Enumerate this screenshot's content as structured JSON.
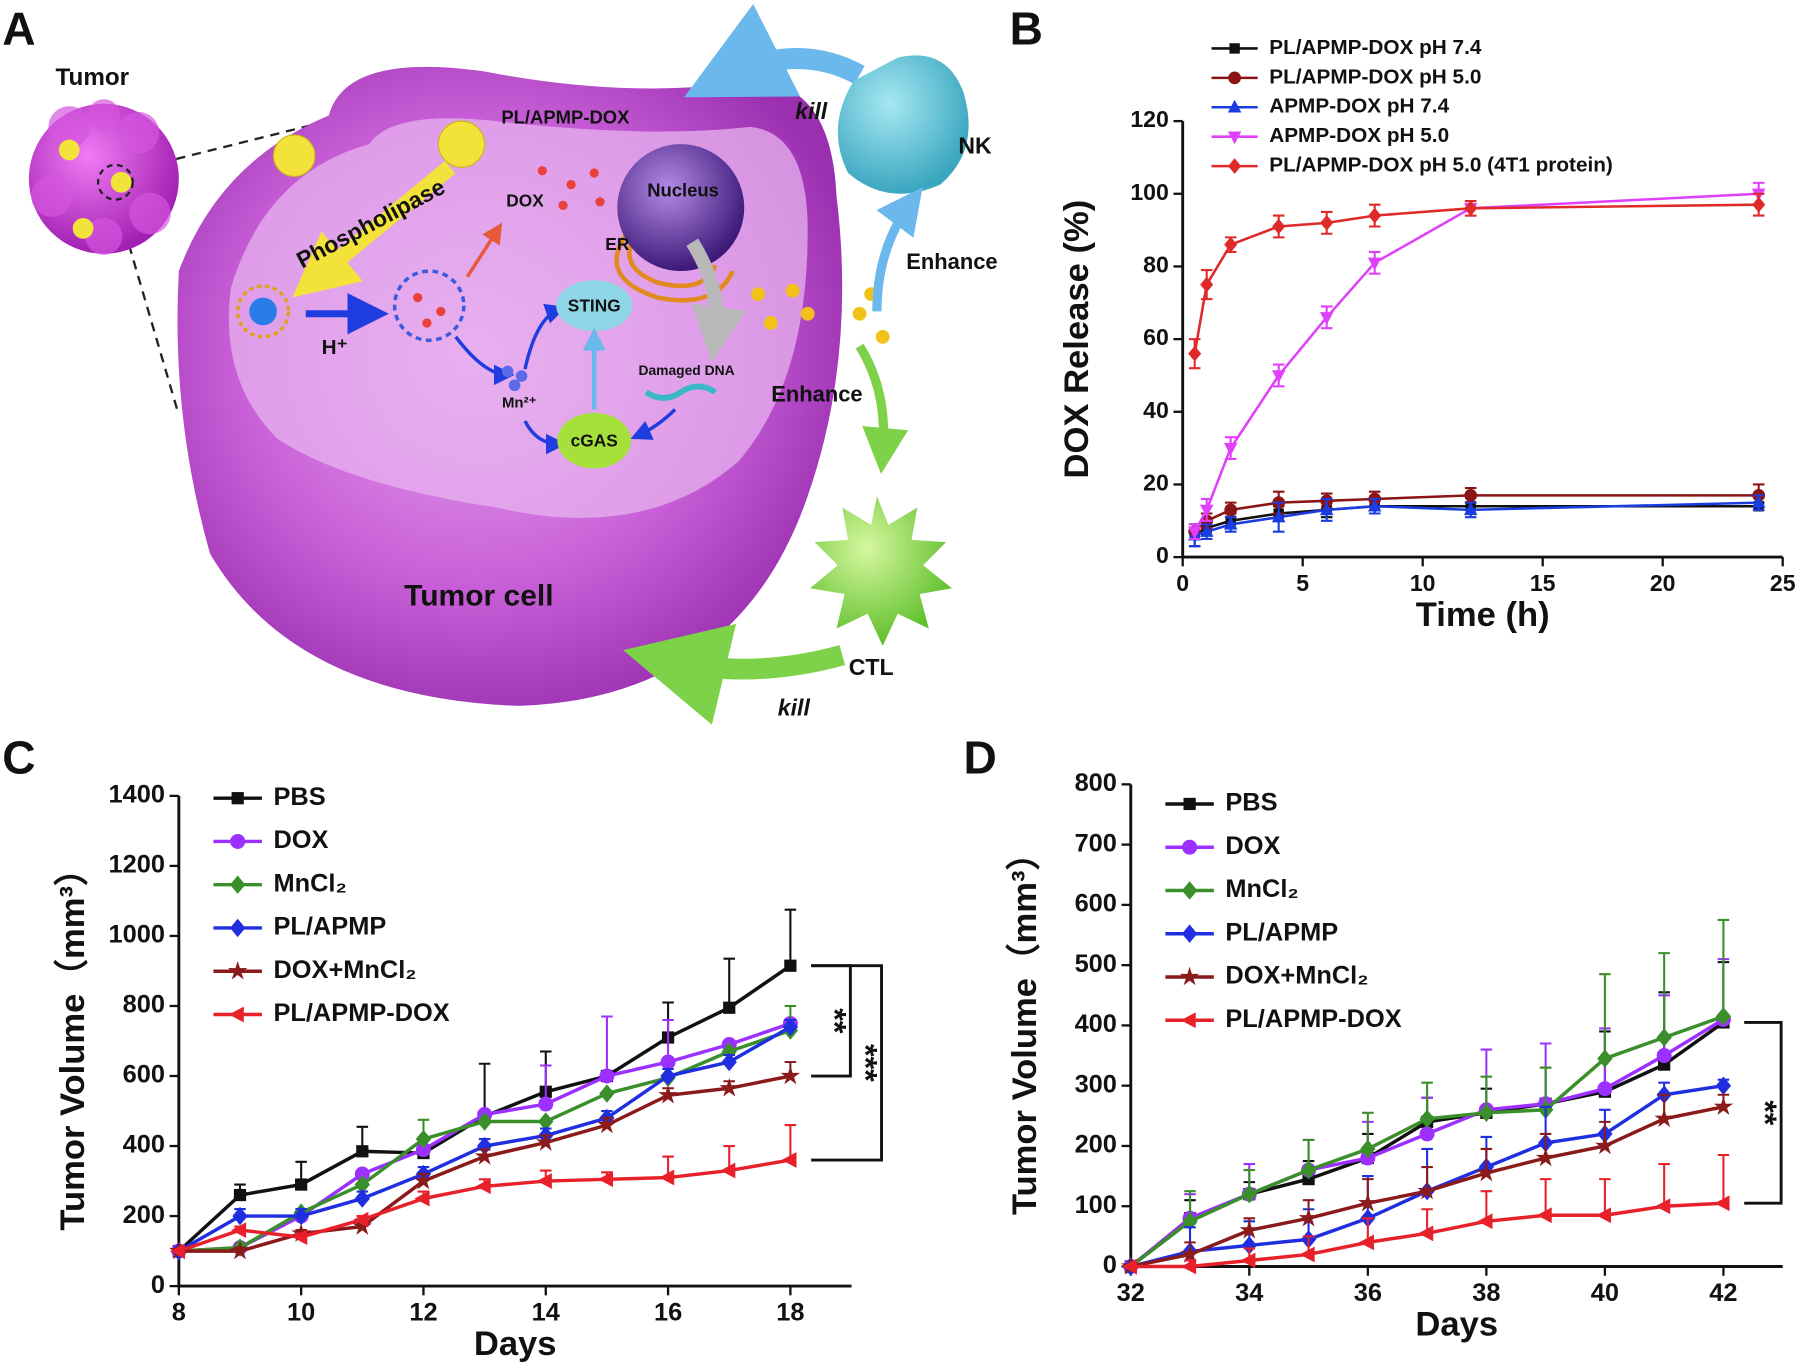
{
  "panels": [
    "A",
    "B",
    "C",
    "D"
  ],
  "diagram": {
    "tumor": "Tumor",
    "nanoparticle": "PL/APMP-DOX",
    "enzyme": "Phospholipase",
    "proton": "H⁺",
    "dox": "DOX",
    "nucleus": "Nucleus",
    "er": "ER",
    "sting": "STING",
    "mn": "Mn²⁺",
    "dna": "Damaged DNA",
    "cgas": "cGAS",
    "nk": "NK",
    "nk_kill": "kill",
    "nk_enhance": "Enhance",
    "ctl_enhance": "Enhance",
    "ctl": "CTL",
    "ctl_kill": "kill",
    "cell": "Tumor cell"
  },
  "chart_data": [
    {
      "type": "line",
      "xlabel": "Time (h)",
      "ylabel": "DOX Release (%)",
      "error_bars": "both",
      "x": [
        0.5,
        1,
        2,
        4,
        6,
        8,
        12,
        24
      ],
      "xlim": [
        0,
        25
      ],
      "xticks": [
        0,
        5,
        10,
        15,
        20,
        25
      ],
      "ylim": [
        0,
        120
      ],
      "yticks": [
        0,
        20,
        40,
        60,
        80,
        100,
        120
      ],
      "series": [
        {
          "name": "PL/APMP-DOX pH 7.4",
          "color": "#111111",
          "marker": "square",
          "values": [
            6,
            8,
            10,
            12,
            13,
            14,
            14,
            14
          ],
          "errors": [
            3,
            2,
            2,
            2,
            2,
            2,
            1,
            1
          ]
        },
        {
          "name": "PL/APMP-DOX pH 5.0",
          "color": "#8b1414",
          "marker": "circle",
          "values": [
            7,
            10,
            13,
            15,
            15.5,
            16,
            17,
            17
          ],
          "errors": [
            2,
            2,
            2,
            3,
            2,
            2,
            2,
            3
          ]
        },
        {
          "name": "APMP-DOX pH 7.4",
          "color": "#1a3ce0",
          "marker": "triangle",
          "values": [
            6,
            7,
            9,
            11,
            13,
            14,
            13,
            15
          ],
          "errors": [
            3,
            2,
            2,
            4,
            3,
            2,
            2,
            2
          ]
        },
        {
          "name": "APMP-DOX pH 5.0",
          "color": "#e040fb",
          "marker": "triangle-down",
          "values": [
            7,
            13,
            30,
            50,
            66,
            81,
            96,
            100
          ],
          "errors": [
            2,
            3,
            3,
            3,
            3,
            3,
            2,
            3
          ]
        },
        {
          "name": "PL/APMP-DOX pH 5.0 (4T1 protein)",
          "color": "#e02a2a",
          "marker": "diamond",
          "values": [
            56,
            75,
            86,
            91,
            92,
            94,
            96,
            97
          ],
          "errors": [
            4,
            4,
            2,
            3,
            3,
            3,
            2,
            3
          ]
        }
      ]
    },
    {
      "type": "line",
      "xlabel": "Days",
      "ylabel": "Tumor Volume（mm³）",
      "error_bars": "up",
      "x": [
        8,
        9,
        10,
        11,
        12,
        13,
        14,
        15,
        16,
        17,
        18
      ],
      "xlim": [
        8,
        19
      ],
      "xticks": [
        8,
        10,
        12,
        14,
        16,
        18
      ],
      "ylim": [
        0,
        1400
      ],
      "yticks": [
        0,
        200,
        400,
        600,
        800,
        1000,
        1200,
        1400
      ],
      "annotations": [
        "**",
        "***"
      ],
      "series": [
        {
          "name": "PBS",
          "color": "#111111",
          "marker": "square",
          "values": [
            100,
            260,
            290,
            385,
            380,
            485,
            555,
            600,
            710,
            795,
            915
          ],
          "errors": [
            0,
            30,
            65,
            70,
            0,
            150,
            115,
            0,
            100,
            140,
            160
          ]
        },
        {
          "name": "DOX",
          "color": "#9b30ff",
          "marker": "circle",
          "values": [
            100,
            110,
            200,
            320,
            390,
            490,
            520,
            600,
            640,
            690,
            750
          ],
          "errors": [
            0,
            0,
            0,
            0,
            0,
            0,
            110,
            170,
            120,
            0,
            0
          ]
        },
        {
          "name": "MnCl₂",
          "color": "#3a8f2a",
          "marker": "diamond",
          "values": [
            100,
            110,
            210,
            290,
            420,
            470,
            470,
            550,
            595,
            670,
            730
          ],
          "errors": [
            0,
            0,
            0,
            0,
            55,
            0,
            0,
            0,
            0,
            0,
            70
          ]
        },
        {
          "name": "PL/APMP",
          "color": "#1f2fe0",
          "marker": "diamond",
          "values": [
            100,
            200,
            200,
            250,
            320,
            400,
            430,
            480,
            600,
            640,
            740
          ],
          "errors": [
            0,
            20,
            20,
            20,
            20,
            20,
            20,
            20,
            20,
            20,
            20
          ]
        },
        {
          "name": "DOX+MnCl₂",
          "color": "#8b1a1a",
          "marker": "star",
          "values": [
            100,
            100,
            150,
            170,
            300,
            370,
            410,
            460,
            545,
            565,
            600
          ],
          "errors": [
            0,
            10,
            10,
            10,
            20,
            20,
            20,
            20,
            20,
            20,
            40
          ]
        },
        {
          "name": "PL/APMP-DOX",
          "color": "#e8202a",
          "marker": "triangle-left",
          "values": [
            100,
            160,
            140,
            190,
            250,
            285,
            300,
            305,
            310,
            330,
            360
          ],
          "errors": [
            0,
            10,
            10,
            10,
            20,
            20,
            30,
            20,
            60,
            70,
            100
          ]
        }
      ]
    },
    {
      "type": "line",
      "xlabel": "Days",
      "ylabel": "Tumor Volume（mm³）",
      "error_bars": "up",
      "x": [
        32,
        33,
        34,
        35,
        36,
        37,
        38,
        39,
        40,
        41,
        42
      ],
      "xlim": [
        32,
        43
      ],
      "xticks": [
        32,
        34,
        36,
        38,
        40,
        42
      ],
      "ylim": [
        0,
        800
      ],
      "yticks": [
        0,
        100,
        200,
        300,
        400,
        500,
        600,
        700,
        800
      ],
      "annotations": [
        "**"
      ],
      "series": [
        {
          "name": "PBS",
          "color": "#111111",
          "marker": "square",
          "values": [
            0,
            80,
            120,
            145,
            180,
            240,
            255,
            270,
            290,
            335,
            405
          ],
          "errors": [
            0,
            30,
            20,
            30,
            40,
            40,
            40,
            60,
            100,
            120,
            100
          ]
        },
        {
          "name": "DOX",
          "color": "#9b30ff",
          "marker": "circle",
          "values": [
            0,
            80,
            120,
            160,
            180,
            220,
            260,
            270,
            295,
            350,
            410
          ],
          "errors": [
            0,
            40,
            50,
            50,
            60,
            60,
            100,
            100,
            100,
            100,
            100
          ]
        },
        {
          "name": "MnCl₂",
          "color": "#3a8f2a",
          "marker": "diamond",
          "values": [
            0,
            75,
            120,
            160,
            195,
            245,
            255,
            260,
            345,
            380,
            415
          ],
          "errors": [
            0,
            50,
            40,
            50,
            60,
            60,
            60,
            70,
            140,
            140,
            160
          ]
        },
        {
          "name": "PL/APMP",
          "color": "#1f2fe0",
          "marker": "diamond",
          "values": [
            0,
            25,
            35,
            45,
            80,
            125,
            165,
            205,
            220,
            285,
            300
          ],
          "errors": [
            0,
            40,
            40,
            50,
            70,
            70,
            50,
            60,
            40,
            20,
            10
          ]
        },
        {
          "name": "DOX+MnCl₂",
          "color": "#8b1a1a",
          "marker": "star",
          "values": [
            0,
            20,
            60,
            80,
            105,
            125,
            155,
            180,
            200,
            245,
            265
          ],
          "errors": [
            0,
            20,
            20,
            30,
            40,
            40,
            40,
            40,
            40,
            40,
            20
          ]
        },
        {
          "name": "PL/APMP-DOX",
          "color": "#e8202a",
          "marker": "triangle-left",
          "values": [
            0,
            0,
            10,
            20,
            40,
            55,
            75,
            85,
            85,
            100,
            105
          ],
          "errors": [
            0,
            10,
            20,
            30,
            40,
            40,
            50,
            60,
            60,
            70,
            80
          ]
        }
      ]
    }
  ]
}
